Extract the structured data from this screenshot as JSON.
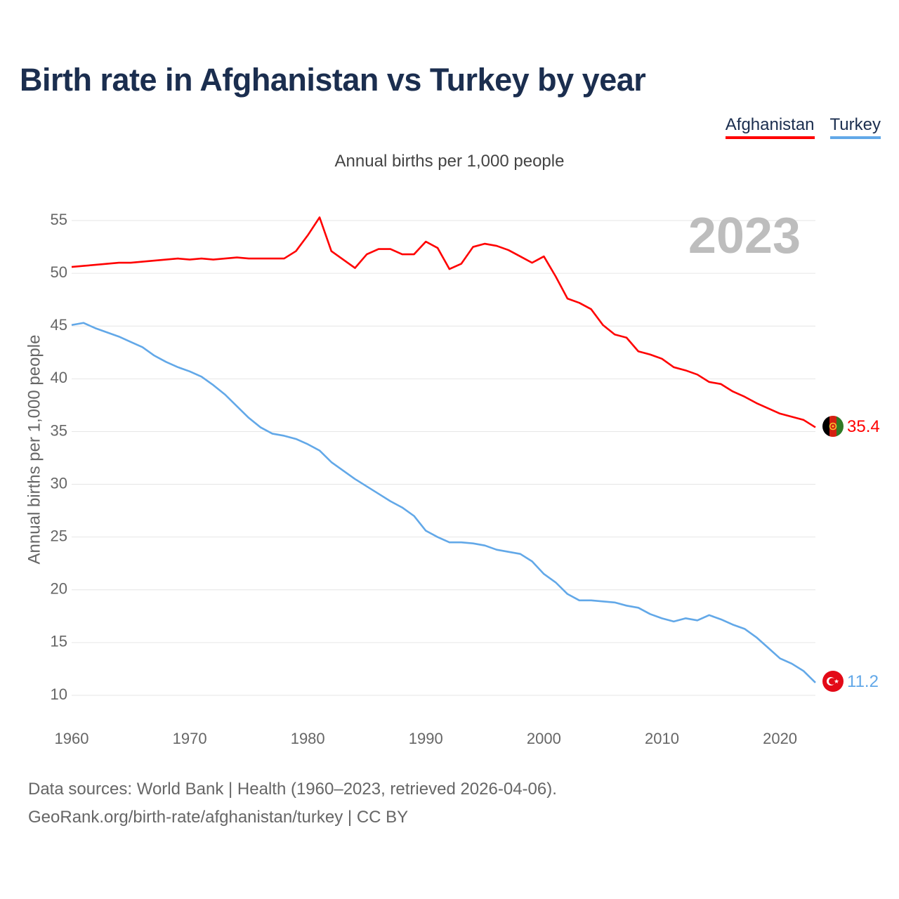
{
  "title": "Birth rate in Afghanistan vs Turkey by year",
  "subtitle": "Annual births per 1,000 people",
  "legend": [
    {
      "name": "Afghanistan",
      "color": "#ff0000"
    },
    {
      "name": "Turkey",
      "color": "#62a8e8"
    }
  ],
  "year_label": "2023",
  "source": {
    "line1": "Data sources: World Bank | Health (1960–2023, retrieved 2026-04-06).",
    "line2": "GeoRank.org/birth-rate/afghanistan/turkey | CC BY"
  },
  "chart_data": {
    "type": "line",
    "title": "Birth rate in Afghanistan vs Turkey by year",
    "subtitle": "Annual births per 1,000 people",
    "xlabel": "",
    "ylabel": "Annual births per 1,000 people",
    "xlim": [
      1960,
      2023
    ],
    "ylim": [
      8,
      57
    ],
    "x_ticks": [
      1960,
      1970,
      1980,
      1990,
      2000,
      2010,
      2020
    ],
    "y_ticks": [
      10,
      15,
      20,
      25,
      30,
      35,
      40,
      45,
      50,
      55
    ],
    "grid": true,
    "legend_position": "top-right",
    "x": [
      1960,
      1961,
      1962,
      1963,
      1964,
      1965,
      1966,
      1967,
      1968,
      1969,
      1970,
      1971,
      1972,
      1973,
      1974,
      1975,
      1976,
      1977,
      1978,
      1979,
      1980,
      1981,
      1982,
      1983,
      1984,
      1985,
      1986,
      1987,
      1988,
      1989,
      1990,
      1991,
      1992,
      1993,
      1994,
      1995,
      1996,
      1997,
      1998,
      1999,
      2000,
      2001,
      2002,
      2003,
      2004,
      2005,
      2006,
      2007,
      2008,
      2009,
      2010,
      2011,
      2012,
      2013,
      2014,
      2015,
      2016,
      2017,
      2018,
      2019,
      2020,
      2021,
      2022,
      2023
    ],
    "series": [
      {
        "name": "Afghanistan",
        "color": "#ff0000",
        "flag": "afghanistan-flag",
        "end_label": "35.4",
        "values": [
          50.6,
          50.7,
          50.8,
          50.9,
          51.0,
          51.0,
          51.1,
          51.2,
          51.3,
          51.4,
          51.3,
          51.4,
          51.3,
          51.4,
          51.5,
          51.4,
          51.4,
          51.4,
          51.4,
          52.1,
          53.6,
          55.3,
          52.1,
          51.3,
          50.5,
          51.8,
          52.3,
          52.3,
          51.8,
          51.8,
          53.0,
          52.4,
          50.4,
          50.9,
          52.5,
          52.8,
          52.6,
          52.2,
          51.6,
          51.0,
          51.6,
          49.7,
          47.6,
          47.2,
          46.6,
          45.1,
          44.2,
          43.9,
          42.6,
          42.3,
          41.9,
          41.1,
          40.8,
          40.4,
          39.7,
          39.5,
          38.8,
          38.3,
          37.7,
          37.2,
          36.7,
          36.4,
          36.1,
          35.4
        ]
      },
      {
        "name": "Turkey",
        "color": "#62a8e8",
        "flag": "turkey-flag",
        "end_label": "11.2",
        "values": [
          45.1,
          45.3,
          44.8,
          44.4,
          44.0,
          43.5,
          43.0,
          42.2,
          41.6,
          41.1,
          40.7,
          40.2,
          39.4,
          38.5,
          37.4,
          36.3,
          35.4,
          34.8,
          34.6,
          34.3,
          33.8,
          33.2,
          32.1,
          31.3,
          30.5,
          29.8,
          29.1,
          28.4,
          27.8,
          27.0,
          25.6,
          25.0,
          24.5,
          24.5,
          24.4,
          24.2,
          23.8,
          23.6,
          23.4,
          22.7,
          21.5,
          20.7,
          19.6,
          19.0,
          19.0,
          18.9,
          18.8,
          18.5,
          18.3,
          17.7,
          17.3,
          17.0,
          17.3,
          17.1,
          17.6,
          17.2,
          16.7,
          16.3,
          15.5,
          14.5,
          13.5,
          13.0,
          12.3,
          11.2
        ]
      }
    ]
  }
}
